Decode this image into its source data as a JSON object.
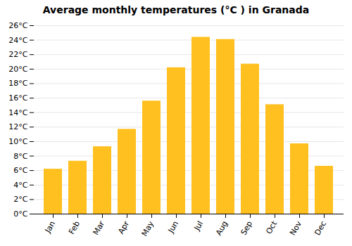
{
  "chart_data": {
    "type": "bar",
    "title": "Average monthly temperatures (°C ) in Granada",
    "categories": [
      "Jan",
      "Feb",
      "Mar",
      "Apr",
      "May",
      "Jun",
      "Jul",
      "Aug",
      "Sep",
      "Oct",
      "Nov",
      "Dec"
    ],
    "values": [
      6.2,
      7.3,
      9.3,
      11.7,
      15.6,
      20.2,
      24.4,
      24.1,
      20.7,
      15.1,
      9.7,
      6.6
    ],
    "color": "#FFC020",
    "ylim": [
      0,
      26
    ],
    "yticks": [
      {
        "value": 0,
        "label": "0°C"
      },
      {
        "value": 2,
        "label": "2°C"
      },
      {
        "value": 4,
        "label": "4°C"
      },
      {
        "value": 6,
        "label": "6°C"
      },
      {
        "value": 8,
        "label": "8°C"
      },
      {
        "value": 10,
        "label": "10°C"
      },
      {
        "value": 12,
        "label": "12°C"
      },
      {
        "value": 14,
        "label": "14°C"
      },
      {
        "value": 16,
        "label": "16°C"
      },
      {
        "value": 18,
        "label": "18°C"
      },
      {
        "value": 20,
        "label": "20°C"
      },
      {
        "value": 22,
        "label": "22°C"
      },
      {
        "value": 24,
        "label": "24°C"
      },
      {
        "value": 26,
        "label": "26°C"
      }
    ],
    "grid": true
  }
}
